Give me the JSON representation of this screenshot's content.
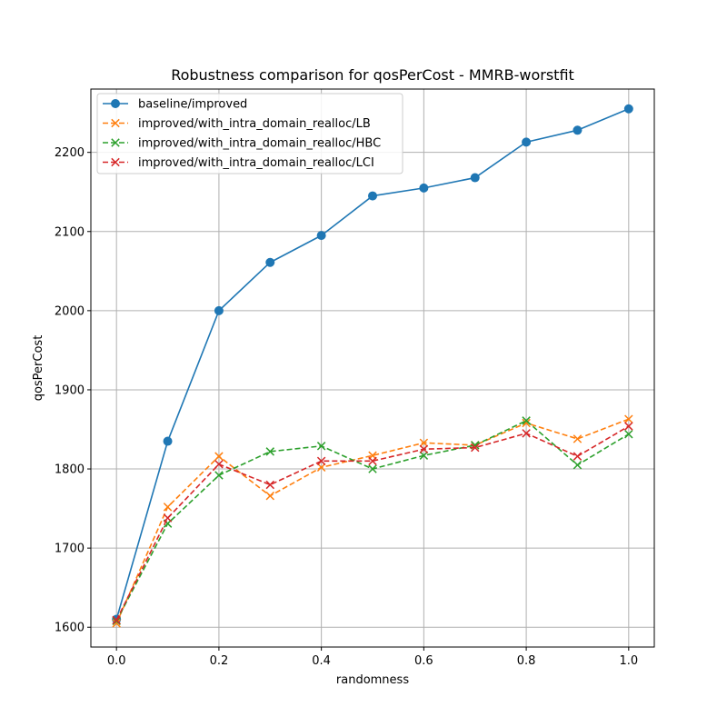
{
  "chart_data": {
    "type": "line",
    "title": "Robustness comparison for qosPerCost - MMRB-worstfit",
    "xlabel": "randomness",
    "ylabel": "qosPerCost",
    "xlim": [
      -0.05,
      1.05
    ],
    "ylim": [
      1575,
      2280
    ],
    "x_ticks": [
      0.0,
      0.2,
      0.4,
      0.6,
      0.8,
      1.0
    ],
    "x_tick_labels": [
      "0.0",
      "0.2",
      "0.4",
      "0.6",
      "0.8",
      "1.0"
    ],
    "y_ticks": [
      1600,
      1700,
      1800,
      1900,
      2000,
      2100,
      2200
    ],
    "y_tick_labels": [
      "1600",
      "1700",
      "1800",
      "1900",
      "2000",
      "2100",
      "2200"
    ],
    "grid": true,
    "legend_position": "top-left",
    "x": [
      0.0,
      0.1,
      0.2,
      0.3,
      0.4,
      0.5,
      0.6,
      0.7,
      0.8,
      0.9,
      1.0
    ],
    "series": [
      {
        "name": "baseline/improved",
        "color": "#1f77b4",
        "style": "solid",
        "marker": "circle",
        "values": [
          1610,
          1835,
          2000,
          2061,
          2095,
          2145,
          2155,
          2168,
          2213,
          2228,
          2255
        ]
      },
      {
        "name": "improved/with_intra_domain_realloc/LB",
        "color": "#ff7f0e",
        "style": "dashed",
        "marker": "x",
        "values": [
          1605,
          1752,
          1816,
          1766,
          1802,
          1817,
          1833,
          1830,
          1858,
          1838,
          1863
        ]
      },
      {
        "name": "improved/with_intra_domain_realloc/HBC",
        "color": "#2ca02c",
        "style": "dashed",
        "marker": "x",
        "values": [
          1608,
          1731,
          1792,
          1822,
          1829,
          1800,
          1817,
          1830,
          1861,
          1805,
          1844
        ]
      },
      {
        "name": "improved/with_intra_domain_realloc/LCI",
        "color": "#d62728",
        "style": "dashed",
        "marker": "x",
        "values": [
          1609,
          1738,
          1806,
          1780,
          1810,
          1810,
          1825,
          1827,
          1845,
          1816,
          1854
        ]
      }
    ]
  }
}
